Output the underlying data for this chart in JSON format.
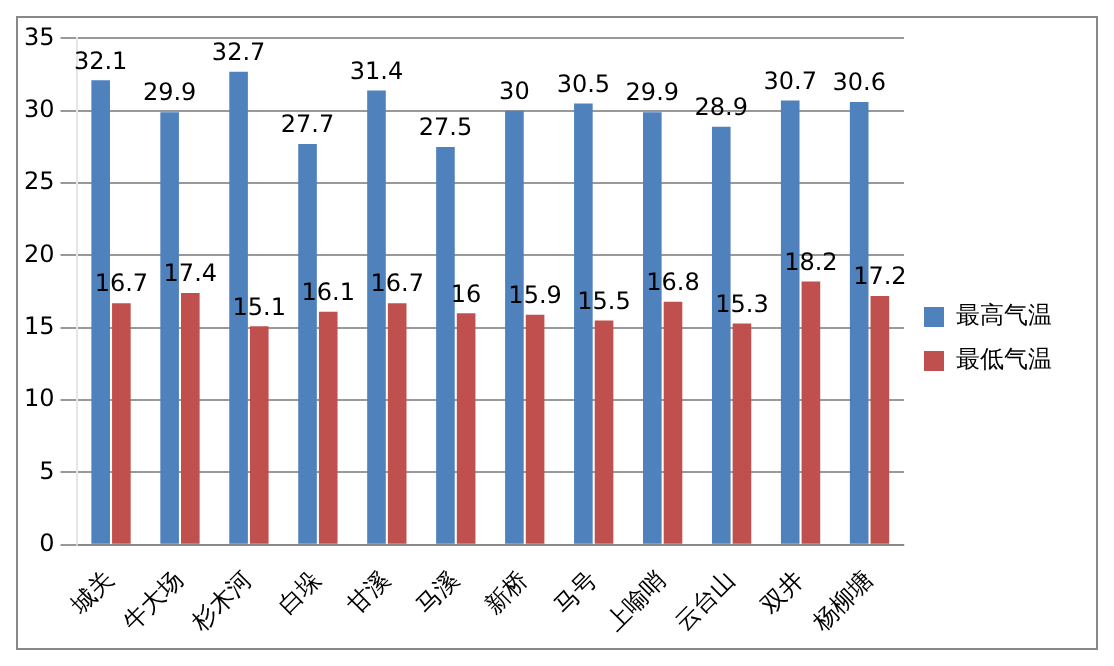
{
  "chart_data": {
    "type": "bar",
    "categories": [
      "城关",
      "牛大场",
      "杉木河",
      "白垛",
      "甘溪",
      "马溪",
      "新桥",
      "马号",
      "上喻哨",
      "云台山",
      "双井",
      "杨柳塘"
    ],
    "series": [
      {
        "name": "最高气温",
        "color": "#4f81bd",
        "values": [
          32.1,
          29.9,
          32.7,
          27.7,
          31.4,
          27.5,
          30,
          30.5,
          29.9,
          28.9,
          30.7,
          30.6
        ]
      },
      {
        "name": "最低气温",
        "color": "#c0504d",
        "values": [
          16.7,
          17.4,
          15.1,
          16.1,
          16.7,
          16,
          15.9,
          15.5,
          16.8,
          15.3,
          18.2,
          17.2
        ]
      }
    ],
    "ylim": [
      0,
      35
    ],
    "yticks": [
      0,
      5,
      10,
      15,
      20,
      25,
      30,
      35
    ],
    "grid": "y",
    "legend": "right",
    "data_labels": true
  }
}
